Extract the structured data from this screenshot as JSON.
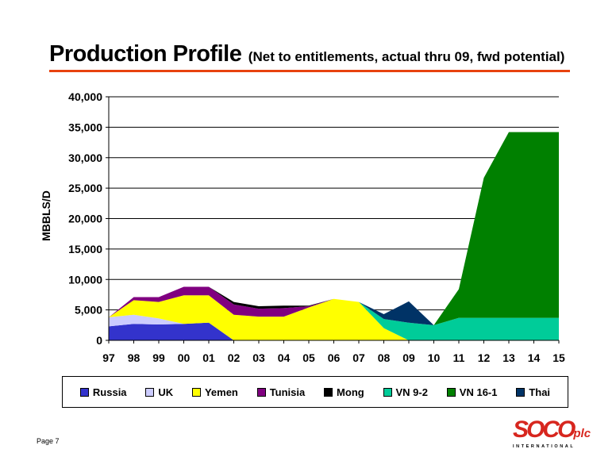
{
  "header": {
    "title_main": "Production Profile",
    "title_sub": "(Net to entitlements, actual thru 09, fwd potential)"
  },
  "footer": {
    "page_label": "Page 7",
    "logo_word": "SOCO",
    "logo_suffix": "plc",
    "logo_tagline": "INTERNATIONAL"
  },
  "chart_data": {
    "type": "area",
    "stacked": true,
    "title": "",
    "xlabel": "",
    "ylabel": "MBBLS/D",
    "ylim": [
      0,
      40000
    ],
    "yticks": [
      0,
      5000,
      10000,
      15000,
      20000,
      25000,
      30000,
      35000,
      40000
    ],
    "ytick_labels": [
      "0",
      "5,000",
      "10,000",
      "15,000",
      "20,000",
      "25,000",
      "30,000",
      "35,000",
      "40,000"
    ],
    "categories": [
      "97",
      "98",
      "99",
      "00",
      "01",
      "02",
      "03",
      "04",
      "05",
      "06",
      "07",
      "08",
      "09",
      "10",
      "11",
      "12",
      "13",
      "14",
      "15"
    ],
    "grid": "horizontal",
    "legend_position": "bottom",
    "series": [
      {
        "name": "Russia",
        "color": "#3333cc",
        "values": [
          2300,
          2700,
          2600,
          2700,
          2900,
          0,
          0,
          0,
          0,
          0,
          0,
          0,
          0,
          0,
          0,
          0,
          0,
          0,
          0
        ]
      },
      {
        "name": "UK",
        "color": "#ccccff",
        "values": [
          1500,
          1500,
          1000,
          0,
          0,
          0,
          0,
          0,
          0,
          0,
          0,
          0,
          0,
          0,
          0,
          0,
          0,
          0,
          0
        ]
      },
      {
        "name": "Yemen",
        "color": "#ffff00",
        "values": [
          0,
          2400,
          2700,
          4700,
          4500,
          4200,
          3900,
          3900,
          5400,
          6800,
          6300,
          2000,
          0,
          0,
          0,
          0,
          0,
          0,
          0
        ]
      },
      {
        "name": "Tunisia",
        "color": "#800080",
        "values": [
          0,
          500,
          800,
          1400,
          1400,
          1700,
          1300,
          1400,
          200,
          0,
          0,
          0,
          0,
          0,
          0,
          0,
          0,
          0,
          0
        ]
      },
      {
        "name": "Mong",
        "color": "#000000",
        "values": [
          0,
          0,
          0,
          0,
          0,
          400,
          400,
          400,
          100,
          0,
          0,
          0,
          0,
          0,
          0,
          0,
          0,
          0,
          0
        ]
      },
      {
        "name": "VN 9-2",
        "color": "#00cc99",
        "values": [
          0,
          0,
          0,
          0,
          0,
          0,
          0,
          0,
          0,
          0,
          0,
          1500,
          2900,
          2500,
          3700,
          3700,
          3700,
          3700,
          3700
        ]
      },
      {
        "name": "VN 16-1",
        "color": "#008000",
        "values": [
          0,
          0,
          0,
          0,
          0,
          0,
          0,
          0,
          0,
          0,
          0,
          0,
          0,
          0,
          4700,
          23000,
          30500,
          30500,
          30500
        ]
      },
      {
        "name": "Thai",
        "color": "#003366",
        "values": [
          0,
          0,
          0,
          0,
          0,
          0,
          0,
          0,
          0,
          0,
          0,
          800,
          3500,
          0,
          0,
          0,
          0,
          0,
          0
        ]
      }
    ]
  }
}
